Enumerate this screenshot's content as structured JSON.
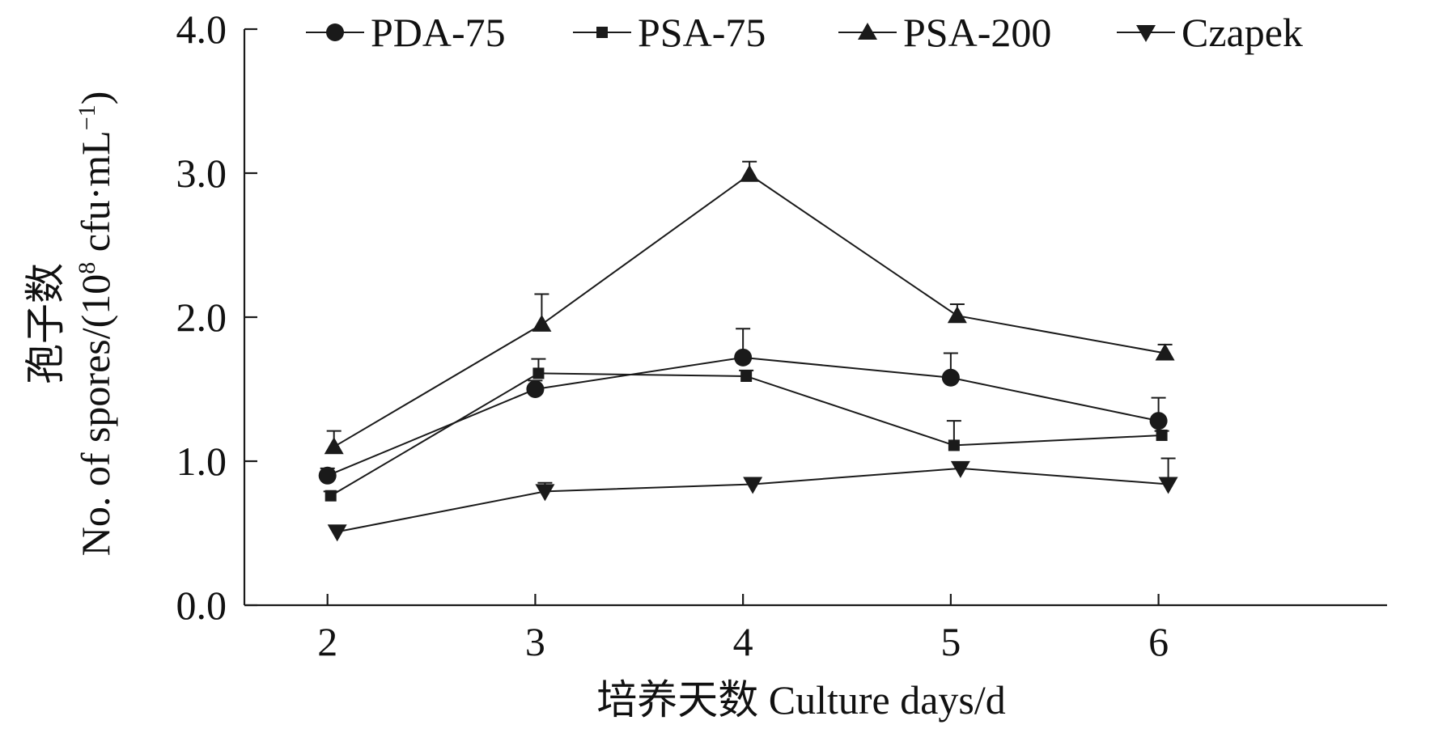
{
  "chart_data": {
    "type": "line",
    "x": [
      2,
      3,
      4,
      5,
      6
    ],
    "x_ticks": [
      "2",
      "3",
      "4",
      "5",
      "6"
    ],
    "xlim": [
      1.6,
      7.1
    ],
    "ylim": [
      0,
      4
    ],
    "y_ticks": [
      "0.0",
      "1.0",
      "2.0",
      "3.0",
      "4.0"
    ],
    "xlabel": "培养天数  Culture days/d",
    "ylabel_cn": "孢子数",
    "ylabel_en": "No. of spores/(10",
    "ylabel_sup": "8",
    "ylabel_unit": " cfu·mL",
    "ylabel_unit_sup": "−1",
    "ylabel_close": ")",
    "grid": false,
    "legend_position": "top",
    "series": [
      {
        "name": "PDA-75",
        "marker": "circle",
        "values": [
          0.9,
          1.5,
          1.72,
          1.58,
          1.28
        ],
        "errors": [
          0.05,
          0.06,
          0.2,
          0.17,
          0.16
        ]
      },
      {
        "name": "PSA-75",
        "marker": "square",
        "values": [
          0.76,
          1.61,
          1.59,
          1.11,
          1.18
        ],
        "errors": [
          0.03,
          0.1,
          0.04,
          0.17,
          0.03
        ]
      },
      {
        "name": "PSA-200",
        "marker": "triangle-up",
        "values": [
          1.1,
          1.95,
          2.99,
          2.01,
          1.75
        ],
        "errors": [
          0.11,
          0.21,
          0.09,
          0.08,
          0.06
        ]
      },
      {
        "name": "Czapek",
        "marker": "triangle-down",
        "values": [
          0.51,
          0.79,
          0.84,
          0.95,
          0.84
        ],
        "errors": [
          0.04,
          0.06,
          0.03,
          0.03,
          0.18
        ]
      }
    ]
  }
}
